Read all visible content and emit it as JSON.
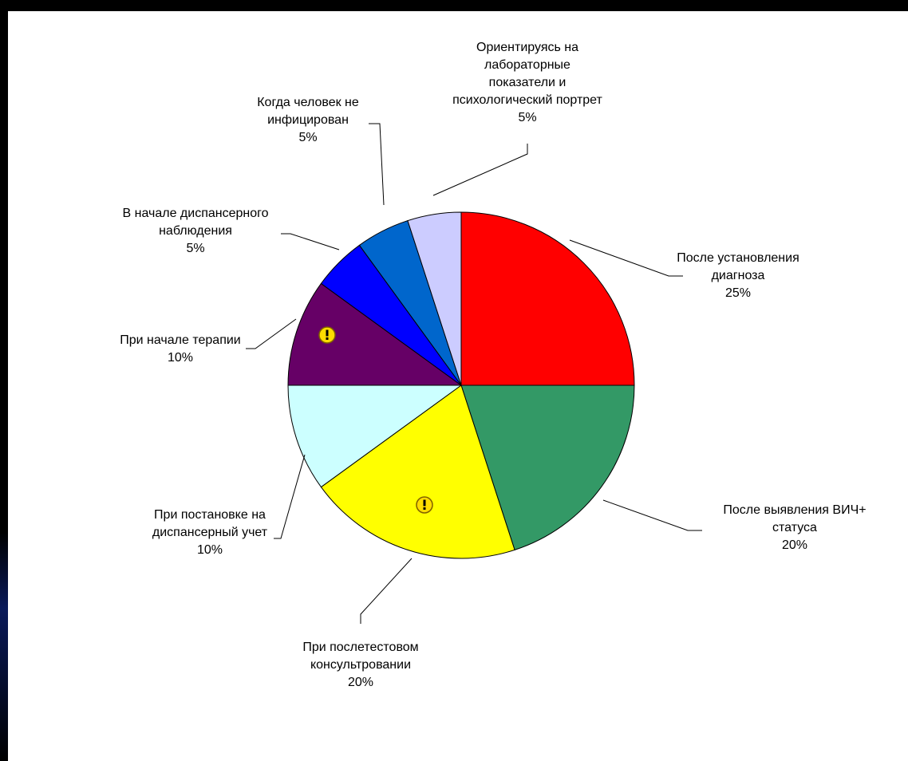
{
  "chart_data": {
    "type": "pie",
    "title": "",
    "slices": [
      {
        "label": [
          "После установления",
          "диагноза"
        ],
        "percent_text": "25%",
        "value": 25,
        "color": "#ff0000"
      },
      {
        "label": [
          "После выявления ВИЧ+",
          "статуса"
        ],
        "percent_text": "20%",
        "value": 20,
        "color": "#339966"
      },
      {
        "label": [
          "При послетестовом",
          "консультровании"
        ],
        "percent_text": "20%",
        "value": 20,
        "color": "#ffff00",
        "marker": "exclamation-icon"
      },
      {
        "label": [
          "При постановке на",
          "диспансерный учет"
        ],
        "percent_text": "10%",
        "value": 10,
        "color": "#ccffff"
      },
      {
        "label": [
          "При начале терапии"
        ],
        "percent_text": "10%",
        "value": 10,
        "color": "#660066",
        "marker": "exclamation-icon"
      },
      {
        "label": [
          "В начале диспансерного",
          "наблюдения"
        ],
        "percent_text": "5%",
        "value": 5,
        "color": "#0000ff"
      },
      {
        "label": [
          "Когда человек не",
          "инфицирован"
        ],
        "percent_text": "5%",
        "value": 5,
        "color": "#0066cc"
      },
      {
        "label": [
          "Ориентируясь на",
          "лабораторные",
          "показатели и",
          "психологический портрет"
        ],
        "percent_text": "5%",
        "value": 5,
        "color": "#ccccff"
      }
    ]
  }
}
